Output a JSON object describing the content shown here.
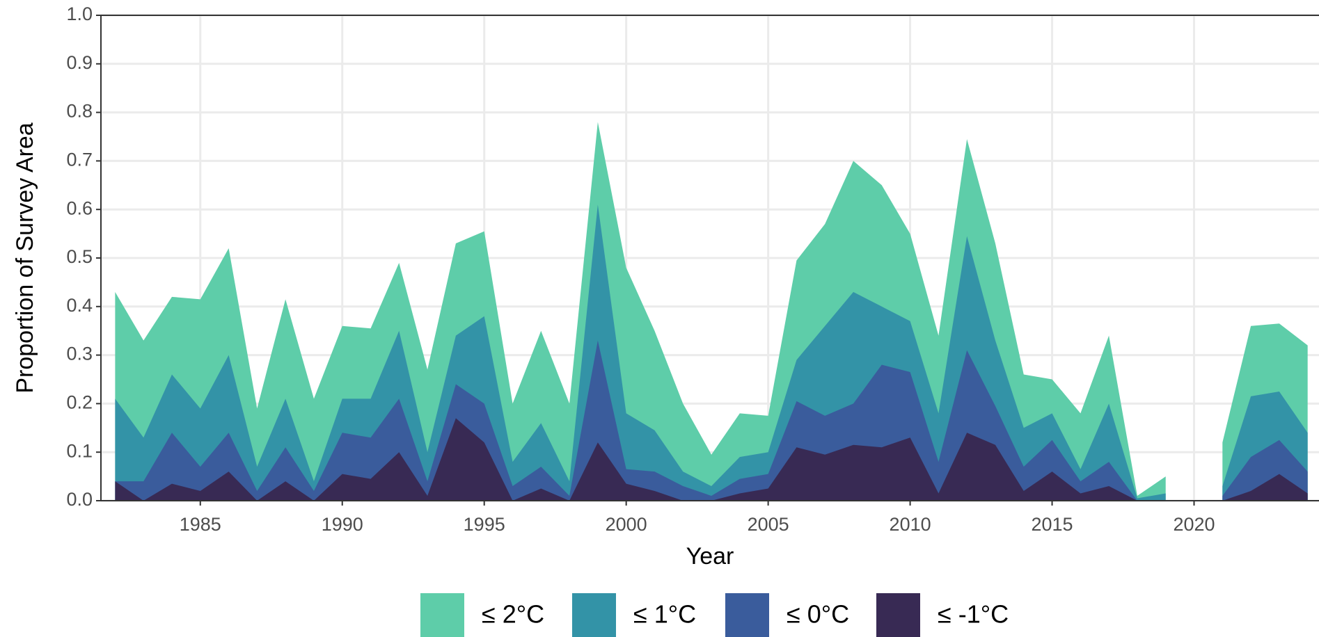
{
  "chart_data": {
    "type": "area",
    "x_label": "Year",
    "y_label": "Proportion of Survey Area",
    "x": [
      1982,
      1983,
      1984,
      1985,
      1986,
      1987,
      1988,
      1989,
      1990,
      1991,
      1992,
      1993,
      1994,
      1995,
      1996,
      1997,
      1998,
      1999,
      2000,
      2001,
      2002,
      2003,
      2004,
      2005,
      2006,
      2007,
      2008,
      2009,
      2010,
      2011,
      2012,
      2013,
      2014,
      2015,
      2016,
      2017,
      2018,
      2019,
      2020,
      2021,
      2022,
      2023,
      2024
    ],
    "series": [
      {
        "name": "≤ 2°C",
        "color": "#5ecda9",
        "values": [
          0.43,
          0.33,
          0.42,
          0.415,
          0.52,
          0.19,
          0.415,
          0.21,
          0.36,
          0.355,
          0.49,
          0.27,
          0.53,
          0.555,
          0.2,
          0.35,
          0.2,
          0.78,
          0.48,
          0.35,
          0.2,
          0.095,
          0.18,
          0.175,
          0.495,
          0.57,
          0.7,
          0.65,
          0.55,
          0.34,
          0.745,
          0.53,
          0.26,
          0.25,
          0.18,
          0.34,
          0.01,
          0.05,
          null,
          0.12,
          0.36,
          0.365,
          0.32
        ]
      },
      {
        "name": "≤ 1°C",
        "color": "#3393a7",
        "values": [
          0.21,
          0.13,
          0.26,
          0.19,
          0.3,
          0.07,
          0.21,
          0.04,
          0.21,
          0.21,
          0.35,
          0.1,
          0.34,
          0.38,
          0.08,
          0.16,
          0.04,
          0.61,
          0.18,
          0.145,
          0.06,
          0.03,
          0.09,
          0.1,
          0.29,
          0.36,
          0.43,
          0.4,
          0.37,
          0.18,
          0.545,
          0.33,
          0.15,
          0.18,
          0.065,
          0.2,
          0.005,
          0.015,
          null,
          0.03,
          0.215,
          0.225,
          0.14
        ]
      },
      {
        "name": "≤ 0°C",
        "color": "#3a5c9c",
        "values": [
          0.04,
          0.04,
          0.14,
          0.07,
          0.14,
          0.02,
          0.11,
          0.02,
          0.14,
          0.13,
          0.21,
          0.04,
          0.24,
          0.2,
          0.03,
          0.07,
          0.01,
          0.33,
          0.065,
          0.06,
          0.03,
          0.01,
          0.045,
          0.055,
          0.205,
          0.175,
          0.2,
          0.28,
          0.265,
          0.08,
          0.31,
          0.195,
          0.07,
          0.125,
          0.04,
          0.08,
          0,
          0,
          null,
          0.01,
          0.09,
          0.125,
          0.06
        ]
      },
      {
        "name": "≤ -1°C",
        "color": "#382a54",
        "values": [
          0.04,
          0,
          0.035,
          0.02,
          0.06,
          0,
          0.04,
          0,
          0.055,
          0.045,
          0.1,
          0.01,
          0.17,
          0.12,
          0,
          0.025,
          0,
          0.12,
          0.035,
          0.02,
          0,
          0,
          0.015,
          0.025,
          0.11,
          0.095,
          0.115,
          0.11,
          0.13,
          0.015,
          0.14,
          0.115,
          0.02,
          0.06,
          0.015,
          0.03,
          0,
          0,
          null,
          0,
          0.02,
          0.055,
          0.015
        ]
      }
    ],
    "xlim": [
      1981.5,
      2024.4
    ],
    "xticks": [
      1985,
      1990,
      1995,
      2000,
      2005,
      2010,
      2015,
      2020
    ],
    "ylim": [
      0,
      1
    ],
    "yticks": [
      {
        "value": 0,
        "label": "0.0"
      },
      {
        "value": 0.1,
        "label": "0.1"
      },
      {
        "value": 0.2,
        "label": "0.2"
      },
      {
        "value": 0.3,
        "label": "0.3"
      },
      {
        "value": 0.4,
        "label": "0.4"
      },
      {
        "value": 0.5,
        "label": "0.5"
      },
      {
        "value": 0.6,
        "label": "0.6"
      },
      {
        "value": 0.7,
        "label": "0.7"
      },
      {
        "value": 0.8,
        "label": "0.8"
      },
      {
        "value": 0.9,
        "label": "0.9"
      },
      {
        "value": 1,
        "label": "1.0"
      }
    ],
    "grid": true,
    "legend": "bottom"
  }
}
